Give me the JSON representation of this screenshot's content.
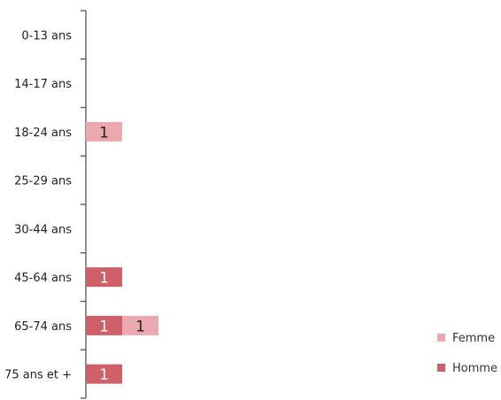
{
  "chart_data": {
    "type": "bar",
    "orientation": "horizontal",
    "stacked": true,
    "categories": [
      "0-13 ans",
      "14-17 ans",
      "18-24 ans",
      "25-29 ans",
      "30-44 ans",
      "45-64 ans",
      "65-74 ans",
      "75 ans et +"
    ],
    "series": [
      {
        "name": "Homme",
        "color": "#cf5f69",
        "label_color": "#ffffff",
        "values": [
          0,
          0,
          0,
          0,
          0,
          1,
          1,
          1
        ]
      },
      {
        "name": "Femme",
        "color": "#eba8af",
        "label_color": "#222222",
        "values": [
          0,
          0,
          1,
          0,
          0,
          0,
          1,
          0
        ]
      }
    ],
    "legend_order": [
      "Femme",
      "Homme"
    ],
    "legend_position": "right",
    "x_range": [
      0,
      11
    ],
    "grid": false
  }
}
